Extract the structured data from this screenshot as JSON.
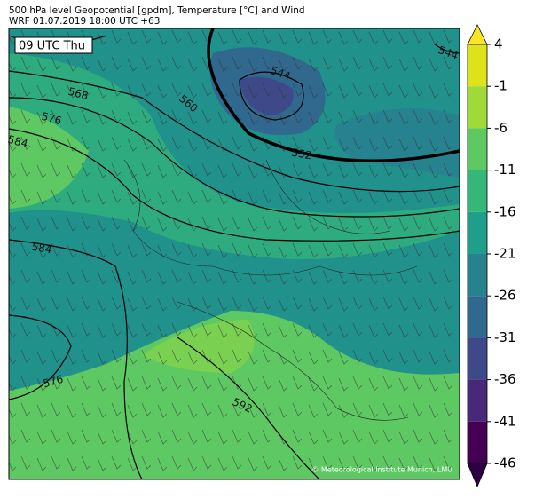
{
  "header": {
    "title_line1": "500 hPa level Geopotential [gpdm], Temperature [°C] and Wind",
    "title_line2": "WRF 01.07.2019 18:00 UTC +63"
  },
  "map": {
    "time_label": "09 UTC Thu",
    "contour_labels": [
      "544",
      "568",
      "576",
      "584",
      "560",
      "552",
      "584",
      "576",
      "592",
      "544"
    ],
    "credit": "© Meteorological Institute Munich, LMU"
  },
  "colorbar": {
    "ticks": [
      4,
      -1,
      -6,
      -11,
      -16,
      -21,
      -26,
      -31,
      -36,
      -41,
      -46
    ],
    "colors": [
      "#dde318",
      "#a0da39",
      "#5ec962",
      "#35b779",
      "#1f9e89",
      "#26828e",
      "#31688e",
      "#3e4989",
      "#482878",
      "#440154"
    ],
    "over_color": "#fde725",
    "under_color": "#2d0042"
  }
}
